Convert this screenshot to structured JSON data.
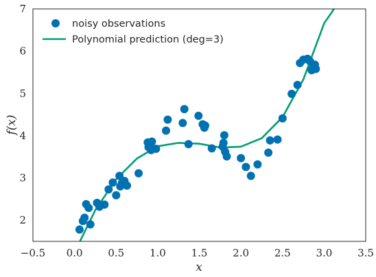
{
  "chart_data": {
    "type": "scatter",
    "xlabel": "x",
    "ylabel": "f(x)",
    "xlim": [
      -0.5,
      3.5
    ],
    "ylim": [
      1.5,
      7.0
    ],
    "x_ticks": [
      "−0.5",
      "0.0",
      "0.5",
      "1.0",
      "1.5",
      "2.0",
      "2.5",
      "3.0",
      "3.5"
    ],
    "y_ticks": [
      "2",
      "3",
      "4",
      "5",
      "6",
      "7"
    ],
    "grid": false,
    "legend_position": "top-left",
    "series": [
      {
        "name": "noisy observations",
        "kind": "scatter",
        "color": "#0072b2",
        "points": [
          [
            0.06,
            1.78
          ],
          [
            0.1,
            1.98
          ],
          [
            0.12,
            2.06
          ],
          [
            0.14,
            2.38
          ],
          [
            0.17,
            2.29
          ],
          [
            0.19,
            1.9
          ],
          [
            0.27,
            2.41
          ],
          [
            0.3,
            2.32
          ],
          [
            0.36,
            2.37
          ],
          [
            0.41,
            2.73
          ],
          [
            0.46,
            2.89
          ],
          [
            0.5,
            2.59
          ],
          [
            0.54,
            3.05
          ],
          [
            0.55,
            2.8
          ],
          [
            0.57,
            2.88
          ],
          [
            0.6,
            2.93
          ],
          [
            0.63,
            2.82
          ],
          [
            0.77,
            3.11
          ],
          [
            0.88,
            3.84
          ],
          [
            0.89,
            3.73
          ],
          [
            0.91,
            3.79
          ],
          [
            0.92,
            3.66
          ],
          [
            0.93,
            3.86
          ],
          [
            0.98,
            3.69
          ],
          [
            1.1,
            4.12
          ],
          [
            1.12,
            4.38
          ],
          [
            1.3,
            4.3
          ],
          [
            1.32,
            4.63
          ],
          [
            1.37,
            3.8
          ],
          [
            1.49,
            4.47
          ],
          [
            1.54,
            4.27
          ],
          [
            1.56,
            4.19
          ],
          [
            1.57,
            4.24
          ],
          [
            1.65,
            3.7
          ],
          [
            1.78,
            3.74
          ],
          [
            1.79,
            3.83
          ],
          [
            1.8,
            4.01
          ],
          [
            1.81,
            3.62
          ],
          [
            1.83,
            3.51
          ],
          [
            2.0,
            3.47
          ],
          [
            2.06,
            3.26
          ],
          [
            2.12,
            3.05
          ],
          [
            2.2,
            3.32
          ],
          [
            2.33,
            3.6
          ],
          [
            2.35,
            3.89
          ],
          [
            2.44,
            3.91
          ],
          [
            2.5,
            4.41
          ],
          [
            2.61,
            4.99
          ],
          [
            2.68,
            5.2
          ],
          [
            2.71,
            5.72
          ],
          [
            2.75,
            5.8
          ],
          [
            2.8,
            5.82
          ],
          [
            2.83,
            5.76
          ],
          [
            2.85,
            5.55
          ],
          [
            2.87,
            5.62
          ],
          [
            2.89,
            5.68
          ],
          [
            2.9,
            5.58
          ]
        ]
      },
      {
        "name": "Polynomial prediction (deg=3)",
        "kind": "line",
        "color": "#009e73",
        "x": [
          0.05,
          0.25,
          0.5,
          0.75,
          1.0,
          1.25,
          1.5,
          1.75,
          2.0,
          2.25,
          2.5,
          2.75,
          3.0,
          3.12
        ],
        "y": [
          1.44,
          2.24,
          2.97,
          3.46,
          3.75,
          3.83,
          3.81,
          3.72,
          3.74,
          3.94,
          4.44,
          5.33,
          6.66,
          7.0
        ]
      }
    ]
  }
}
